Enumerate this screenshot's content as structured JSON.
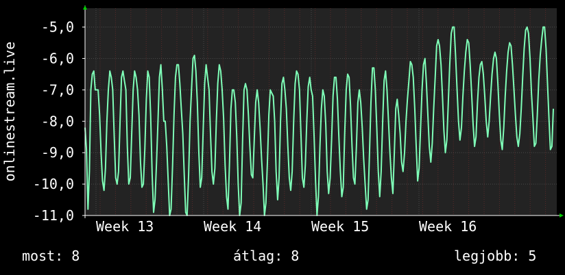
{
  "chart_data": {
    "type": "line",
    "ylabel": "onlinestream.live",
    "ylim": [
      -11.0,
      -4.4
    ],
    "y_ticks": [
      "-5,0",
      "-6,0",
      "-7,0",
      "-8,0",
      "-9,0",
      "-10,0",
      "-11,0"
    ],
    "y_tick_values": [
      -5,
      -6,
      -7,
      -8,
      -9,
      -10,
      -11
    ],
    "x_ticks": [
      "Week 13",
      "Week 14",
      "Week 15",
      "Week 16"
    ],
    "grid": true,
    "colors": {
      "background": "#000000",
      "plot_bg": "#232323",
      "grid": "#4a4a4a",
      "minor_grid": "#5a2a2a",
      "line": "#7fffb8",
      "axis": "#ffffff",
      "arrow": "#00cc00"
    },
    "series": [
      {
        "values": [
          -8.2,
          -8.9,
          -10.8,
          -9.6,
          -7.0,
          -6.5,
          -6.4,
          -7.0,
          -7.0,
          -7.0,
          -7.8,
          -9.0,
          -9.9,
          -10.2,
          -9.5,
          -8.0,
          -7.0,
          -6.4,
          -6.6,
          -7.0,
          -8.5,
          -9.8,
          -10.0,
          -9.6,
          -8.0,
          -6.6,
          -6.4,
          -6.7,
          -7.0,
          -8.8,
          -10.0,
          -9.8,
          -8.4,
          -7.0,
          -6.4,
          -6.6,
          -7.0,
          -7.8,
          -9.3,
          -10.1,
          -10.0,
          -8.9,
          -7.3,
          -6.4,
          -6.6,
          -7.8,
          -9.7,
          -10.9,
          -10.5,
          -9.3,
          -8.0,
          -6.6,
          -6.2,
          -7.0,
          -8.0,
          -8.0,
          -8.8,
          -9.9,
          -11.1,
          -10.8,
          -9.4,
          -7.8,
          -6.6,
          -6.2,
          -6.2,
          -6.8,
          -7.6,
          -8.4,
          -9.7,
          -10.9,
          -11.0,
          -9.7,
          -8.0,
          -7.0,
          -6.0,
          -5.9,
          -6.4,
          -7.4,
          -9.0,
          -10.1,
          -9.8,
          -8.3,
          -6.8,
          -6.2,
          -6.6,
          -7.0,
          -8.4,
          -9.6,
          -10.0,
          -9.5,
          -8.0,
          -6.8,
          -6.2,
          -6.4,
          -7.0,
          -7.9,
          -9.4,
          -10.4,
          -10.8,
          -9.4,
          -7.6,
          -7.0,
          -7.0,
          -7.4,
          -8.5,
          -10.0,
          -11.0,
          -10.6,
          -8.6,
          -7.0,
          -6.8,
          -7.0,
          -7.8,
          -8.8,
          -9.7,
          -9.8,
          -8.6,
          -7.4,
          -7.0,
          -7.4,
          -8.2,
          -9.2,
          -10.0,
          -11.0,
          -10.6,
          -9.3,
          -7.8,
          -7.0,
          -7.1,
          -7.2,
          -8.0,
          -9.6,
          -10.5,
          -9.8,
          -8.0,
          -6.8,
          -6.6,
          -7.0,
          -7.6,
          -8.8,
          -9.8,
          -10.2,
          -9.6,
          -8.0,
          -6.8,
          -6.4,
          -6.5,
          -7.0,
          -8.4,
          -9.8,
          -10.1,
          -9.4,
          -8.0,
          -6.9,
          -6.6,
          -7.0,
          -7.2,
          -8.5,
          -9.9,
          -11.0,
          -10.4,
          -8.8,
          -7.6,
          -7.0,
          -7.2,
          -8.1,
          -9.6,
          -10.3,
          -9.8,
          -8.6,
          -7.2,
          -6.6,
          -6.6,
          -7.3,
          -8.5,
          -9.6,
          -10.4,
          -10.1,
          -8.4,
          -7.0,
          -6.5,
          -6.6,
          -7.5,
          -8.8,
          -9.8,
          -10.0,
          -8.8,
          -7.4,
          -7.0,
          -7.4,
          -8.2,
          -9.2,
          -10.0,
          -10.8,
          -10.5,
          -9.0,
          -7.4,
          -6.3,
          -6.3,
          -7.0,
          -8.2,
          -9.6,
          -10.4,
          -9.6,
          -8.0,
          -6.7,
          -6.4,
          -7.0,
          -8.0,
          -9.0,
          -9.8,
          -10.3,
          -9.0,
          -7.6,
          -7.3,
          -7.8,
          -8.4,
          -9.3,
          -9.6,
          -9.0,
          -8.0,
          -7.3,
          -6.7,
          -6.1,
          -6.2,
          -6.6,
          -7.6,
          -8.8,
          -9.9,
          -9.5,
          -8.2,
          -7.0,
          -6.2,
          -6.0,
          -6.8,
          -7.8,
          -8.8,
          -9.3,
          -8.7,
          -7.6,
          -6.6,
          -5.6,
          -5.4,
          -5.6,
          -6.2,
          -7.2,
          -8.3,
          -9.0,
          -8.6,
          -7.4,
          -6.2,
          -5.2,
          -5.0,
          -5.0,
          -5.9,
          -7.0,
          -8.0,
          -8.6,
          -8.2,
          -7.2,
          -6.4,
          -5.8,
          -5.4,
          -5.5,
          -6.2,
          -7.1,
          -8.1,
          -8.8,
          -8.5,
          -7.4,
          -6.6,
          -6.2,
          -6.1,
          -6.5,
          -7.2,
          -8.0,
          -8.5,
          -8.0,
          -7.2,
          -6.5,
          -6.0,
          -5.8,
          -6.0,
          -6.8,
          -7.8,
          -8.6,
          -8.9,
          -8.2,
          -7.2,
          -6.4,
          -5.8,
          -5.5,
          -5.6,
          -6.2,
          -7.0,
          -7.8,
          -8.5,
          -8.8,
          -8.4,
          -7.6,
          -6.6,
          -5.7,
          -5.1,
          -5.0,
          -5.2,
          -6.0,
          -7.1,
          -7.9,
          -8.8,
          -8.7,
          -7.8,
          -6.7,
          -5.9,
          -5.4,
          -5.0,
          -5.0,
          -5.7,
          -6.8,
          -7.9,
          -8.9,
          -8.8,
          -7.6
        ]
      }
    ]
  },
  "stats": {
    "now": "most: 8",
    "avg": "átlag: 8",
    "max": "legjobb: 5"
  }
}
